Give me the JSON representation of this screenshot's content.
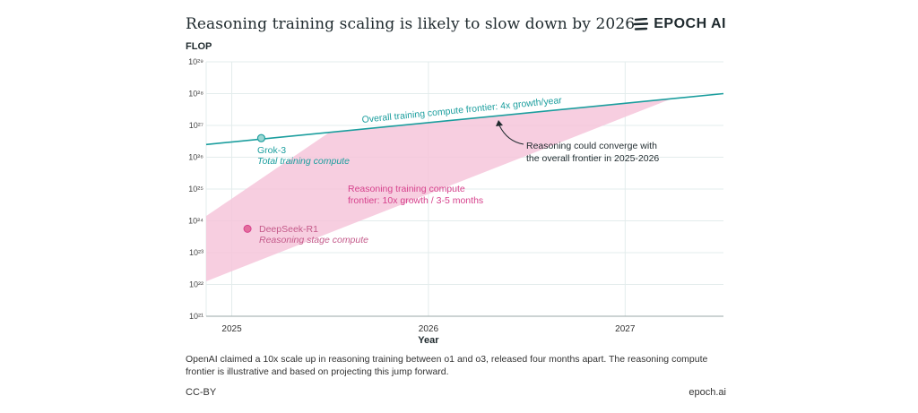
{
  "header": {
    "title": "Reasoning training scaling is likely to slow down by 2026",
    "brand": "EPOCH AI",
    "brand_icon": "epoch-logo-icon"
  },
  "footer": {
    "note": "OpenAI claimed a 10x scale up in reasoning training between o1 and o3, released four months apart. The reasoning compute frontier is illustrative and based on projecting this jump forward.",
    "license": "CC-BY",
    "site": "epoch.ai"
  },
  "colors": {
    "teal": "#1b9e9e",
    "pink_fill": "#f6c6da",
    "pink_text": "#d6418c",
    "pink_point": "#e46d9d",
    "grid": "#e3ecec"
  },
  "chart_data": {
    "type": "line",
    "ylabel": "FLOP",
    "xlabel": "Year",
    "y_scale": "log",
    "ylim_exponent": [
      21,
      29
    ],
    "y_ticks": [
      "10²¹",
      "10²²",
      "10²³",
      "10²⁴",
      "10²⁵",
      "10²⁶",
      "10²⁷",
      "10²⁸",
      "10²⁹"
    ],
    "x_ticks": [
      "2025",
      "2026",
      "2027"
    ],
    "xlim": [
      2024.87,
      2027.5
    ],
    "grid": true,
    "series": [
      {
        "name": "Overall training compute frontier: 4x growth/year",
        "kind": "line",
        "x": [
          2024.87,
          2027.5
        ],
        "y_exponent": [
          26.4,
          28.0
        ]
      },
      {
        "name": "Reasoning training compute frontier: 10x growth / 3-5 months",
        "kind": "band",
        "upper_x": [
          2024.87,
          2025.5,
          2027.24
        ],
        "upper_y_exponent": [
          24.15,
          26.8,
          27.85
        ],
        "lower_x": [
          2024.87,
          2027.24
        ],
        "lower_y_exponent": [
          22.1,
          27.85
        ]
      }
    ],
    "points": [
      {
        "label": "Grok-3",
        "sublabel": "Total training compute",
        "x": 2025.15,
        "y_exponent": 26.6
      },
      {
        "label": "DeepSeek-R1",
        "sublabel": "Reasoning stage compute",
        "x": 2025.08,
        "y_exponent": 23.75
      }
    ],
    "annotations": [
      {
        "text": [
          "Reasoning could converge with",
          "the overall frontier in 2025-2026"
        ]
      }
    ]
  }
}
